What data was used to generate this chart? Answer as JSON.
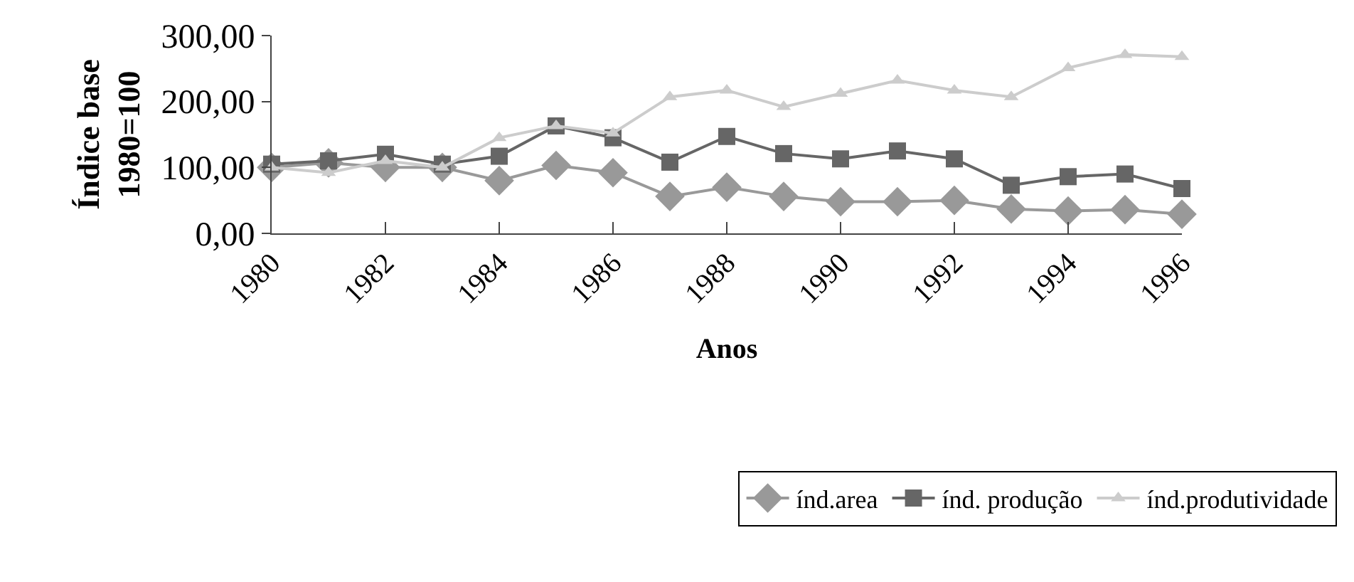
{
  "chart_data": {
    "type": "line",
    "xlabel": "Anos",
    "ylabel": "Índice base\n1980=100",
    "categories": [
      "1980",
      null,
      "1982",
      null,
      "1984",
      null,
      "1986",
      null,
      "1988",
      null,
      "1990",
      null,
      "1992",
      null,
      "1994",
      null,
      "1996"
    ],
    "series": [
      {
        "name": "índ.area",
        "color": "#999999",
        "marker": "diamond",
        "values": [
          100,
          107,
          100,
          100,
          80,
          103,
          92,
          56,
          70,
          56,
          48,
          48,
          50,
          37,
          34,
          36,
          29
        ]
      },
      {
        "name": "índ. produção",
        "color": "#666666",
        "marker": "square",
        "values": [
          105,
          110,
          120,
          105,
          117,
          163,
          145,
          108,
          147,
          121,
          113,
          125,
          113,
          73,
          86,
          90,
          68
        ]
      },
      {
        "name": "índ.produtividade",
        "color": "#cccccc",
        "marker": "triangle",
        "values": [
          100,
          92,
          110,
          100,
          145,
          163,
          152,
          207,
          217,
          192,
          212,
          232,
          217,
          207,
          251,
          271,
          268
        ]
      }
    ],
    "ylim": [
      0,
      300
    ],
    "yticks": [
      {
        "value": 0,
        "label": "0,00"
      },
      {
        "value": 100,
        "label": "100,00"
      },
      {
        "value": 200,
        "label": "200,00"
      },
      {
        "value": 300,
        "label": "300,00"
      }
    ],
    "grid": false,
    "legend": "bottom right",
    "line_style": "solid"
  }
}
